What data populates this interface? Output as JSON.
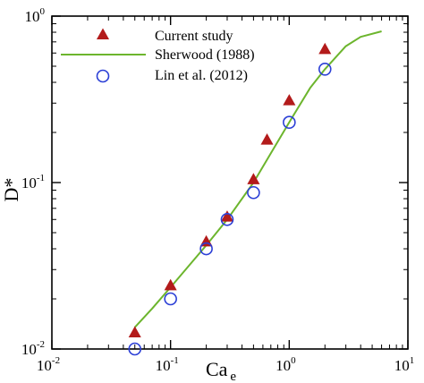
{
  "chart_data": {
    "type": "scatter",
    "xlabel": "Ca",
    "xlabel_subscript": "e",
    "ylabel": "D*",
    "x_scale": "log",
    "y_scale": "log",
    "xlim": [
      0.01,
      10
    ],
    "ylim": [
      0.01,
      1
    ],
    "x_ticks": [
      {
        "base": "10",
        "exp": "-2"
      },
      {
        "base": "10",
        "exp": "-1"
      },
      {
        "base": "10",
        "exp": "0"
      },
      {
        "base": "10",
        "exp": "1"
      }
    ],
    "y_ticks": [
      {
        "base": "10",
        "exp": "-2"
      },
      {
        "base": "10",
        "exp": "-1"
      },
      {
        "base": "10",
        "exp": "0"
      }
    ],
    "legend_position": "top-left",
    "grid": false,
    "series": [
      {
        "name": "Current study",
        "kind": "marker",
        "marker": "triangle",
        "color": "#b31b1b",
        "x": [
          0.05,
          0.1,
          0.2,
          0.3,
          0.5,
          0.65,
          1.0,
          2.0
        ],
        "y": [
          0.0125,
          0.024,
          0.044,
          0.062,
          0.104,
          0.18,
          0.31,
          0.63
        ]
      },
      {
        "name": "Sherwood (1988)",
        "kind": "line",
        "color": "#6cb52d",
        "x": [
          0.05,
          0.07,
          0.1,
          0.15,
          0.2,
          0.3,
          0.5,
          0.7,
          1.0,
          1.5,
          2.0,
          3.0,
          4.0,
          6.0
        ],
        "y": [
          0.0135,
          0.0175,
          0.0235,
          0.033,
          0.042,
          0.06,
          0.1,
          0.15,
          0.23,
          0.37,
          0.48,
          0.66,
          0.75,
          0.81
        ]
      },
      {
        "name": "Lin et al. (2012)",
        "kind": "marker",
        "marker": "circle-open",
        "color": "#2b3fd6",
        "x": [
          0.05,
          0.1,
          0.2,
          0.3,
          0.5,
          1.0,
          2.0
        ],
        "y": [
          0.01,
          0.02,
          0.04,
          0.06,
          0.087,
          0.23,
          0.48
        ]
      }
    ]
  }
}
